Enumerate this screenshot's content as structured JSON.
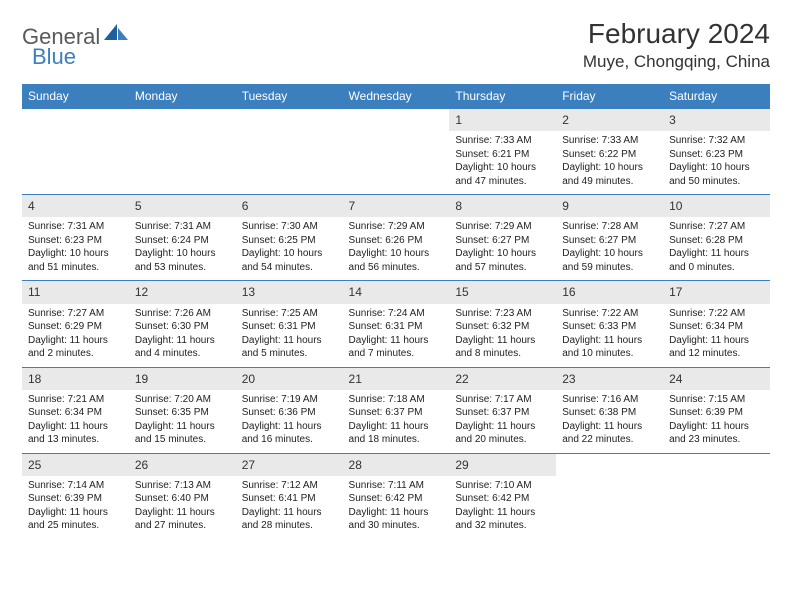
{
  "logo": {
    "part1": "General",
    "part2": "Blue"
  },
  "title": "February 2024",
  "location": "Muye, Chongqing, China",
  "colors": {
    "header_bg": "#3b7fbf",
    "header_text": "#ffffff",
    "daynum_bg": "#e9e9e9",
    "border": "#3b7fbf",
    "body_text": "#222222",
    "logo_gray": "#5a5a5a",
    "logo_blue": "#3b7fbf"
  },
  "day_headers": [
    "Sunday",
    "Monday",
    "Tuesday",
    "Wednesday",
    "Thursday",
    "Friday",
    "Saturday"
  ],
  "weeks": [
    [
      {
        "num": "",
        "sunrise": "",
        "sunset": "",
        "daylight": ""
      },
      {
        "num": "",
        "sunrise": "",
        "sunset": "",
        "daylight": ""
      },
      {
        "num": "",
        "sunrise": "",
        "sunset": "",
        "daylight": ""
      },
      {
        "num": "",
        "sunrise": "",
        "sunset": "",
        "daylight": ""
      },
      {
        "num": "1",
        "sunrise": "Sunrise: 7:33 AM",
        "sunset": "Sunset: 6:21 PM",
        "daylight": "Daylight: 10 hours and 47 minutes."
      },
      {
        "num": "2",
        "sunrise": "Sunrise: 7:33 AM",
        "sunset": "Sunset: 6:22 PM",
        "daylight": "Daylight: 10 hours and 49 minutes."
      },
      {
        "num": "3",
        "sunrise": "Sunrise: 7:32 AM",
        "sunset": "Sunset: 6:23 PM",
        "daylight": "Daylight: 10 hours and 50 minutes."
      }
    ],
    [
      {
        "num": "4",
        "sunrise": "Sunrise: 7:31 AM",
        "sunset": "Sunset: 6:23 PM",
        "daylight": "Daylight: 10 hours and 51 minutes."
      },
      {
        "num": "5",
        "sunrise": "Sunrise: 7:31 AM",
        "sunset": "Sunset: 6:24 PM",
        "daylight": "Daylight: 10 hours and 53 minutes."
      },
      {
        "num": "6",
        "sunrise": "Sunrise: 7:30 AM",
        "sunset": "Sunset: 6:25 PM",
        "daylight": "Daylight: 10 hours and 54 minutes."
      },
      {
        "num": "7",
        "sunrise": "Sunrise: 7:29 AM",
        "sunset": "Sunset: 6:26 PM",
        "daylight": "Daylight: 10 hours and 56 minutes."
      },
      {
        "num": "8",
        "sunrise": "Sunrise: 7:29 AM",
        "sunset": "Sunset: 6:27 PM",
        "daylight": "Daylight: 10 hours and 57 minutes."
      },
      {
        "num": "9",
        "sunrise": "Sunrise: 7:28 AM",
        "sunset": "Sunset: 6:27 PM",
        "daylight": "Daylight: 10 hours and 59 minutes."
      },
      {
        "num": "10",
        "sunrise": "Sunrise: 7:27 AM",
        "sunset": "Sunset: 6:28 PM",
        "daylight": "Daylight: 11 hours and 0 minutes."
      }
    ],
    [
      {
        "num": "11",
        "sunrise": "Sunrise: 7:27 AM",
        "sunset": "Sunset: 6:29 PM",
        "daylight": "Daylight: 11 hours and 2 minutes."
      },
      {
        "num": "12",
        "sunrise": "Sunrise: 7:26 AM",
        "sunset": "Sunset: 6:30 PM",
        "daylight": "Daylight: 11 hours and 4 minutes."
      },
      {
        "num": "13",
        "sunrise": "Sunrise: 7:25 AM",
        "sunset": "Sunset: 6:31 PM",
        "daylight": "Daylight: 11 hours and 5 minutes."
      },
      {
        "num": "14",
        "sunrise": "Sunrise: 7:24 AM",
        "sunset": "Sunset: 6:31 PM",
        "daylight": "Daylight: 11 hours and 7 minutes."
      },
      {
        "num": "15",
        "sunrise": "Sunrise: 7:23 AM",
        "sunset": "Sunset: 6:32 PM",
        "daylight": "Daylight: 11 hours and 8 minutes."
      },
      {
        "num": "16",
        "sunrise": "Sunrise: 7:22 AM",
        "sunset": "Sunset: 6:33 PM",
        "daylight": "Daylight: 11 hours and 10 minutes."
      },
      {
        "num": "17",
        "sunrise": "Sunrise: 7:22 AM",
        "sunset": "Sunset: 6:34 PM",
        "daylight": "Daylight: 11 hours and 12 minutes."
      }
    ],
    [
      {
        "num": "18",
        "sunrise": "Sunrise: 7:21 AM",
        "sunset": "Sunset: 6:34 PM",
        "daylight": "Daylight: 11 hours and 13 minutes."
      },
      {
        "num": "19",
        "sunrise": "Sunrise: 7:20 AM",
        "sunset": "Sunset: 6:35 PM",
        "daylight": "Daylight: 11 hours and 15 minutes."
      },
      {
        "num": "20",
        "sunrise": "Sunrise: 7:19 AM",
        "sunset": "Sunset: 6:36 PM",
        "daylight": "Daylight: 11 hours and 16 minutes."
      },
      {
        "num": "21",
        "sunrise": "Sunrise: 7:18 AM",
        "sunset": "Sunset: 6:37 PM",
        "daylight": "Daylight: 11 hours and 18 minutes."
      },
      {
        "num": "22",
        "sunrise": "Sunrise: 7:17 AM",
        "sunset": "Sunset: 6:37 PM",
        "daylight": "Daylight: 11 hours and 20 minutes."
      },
      {
        "num": "23",
        "sunrise": "Sunrise: 7:16 AM",
        "sunset": "Sunset: 6:38 PM",
        "daylight": "Daylight: 11 hours and 22 minutes."
      },
      {
        "num": "24",
        "sunrise": "Sunrise: 7:15 AM",
        "sunset": "Sunset: 6:39 PM",
        "daylight": "Daylight: 11 hours and 23 minutes."
      }
    ],
    [
      {
        "num": "25",
        "sunrise": "Sunrise: 7:14 AM",
        "sunset": "Sunset: 6:39 PM",
        "daylight": "Daylight: 11 hours and 25 minutes."
      },
      {
        "num": "26",
        "sunrise": "Sunrise: 7:13 AM",
        "sunset": "Sunset: 6:40 PM",
        "daylight": "Daylight: 11 hours and 27 minutes."
      },
      {
        "num": "27",
        "sunrise": "Sunrise: 7:12 AM",
        "sunset": "Sunset: 6:41 PM",
        "daylight": "Daylight: 11 hours and 28 minutes."
      },
      {
        "num": "28",
        "sunrise": "Sunrise: 7:11 AM",
        "sunset": "Sunset: 6:42 PM",
        "daylight": "Daylight: 11 hours and 30 minutes."
      },
      {
        "num": "29",
        "sunrise": "Sunrise: 7:10 AM",
        "sunset": "Sunset: 6:42 PM",
        "daylight": "Daylight: 11 hours and 32 minutes."
      },
      {
        "num": "",
        "sunrise": "",
        "sunset": "",
        "daylight": ""
      },
      {
        "num": "",
        "sunrise": "",
        "sunset": "",
        "daylight": ""
      }
    ]
  ]
}
